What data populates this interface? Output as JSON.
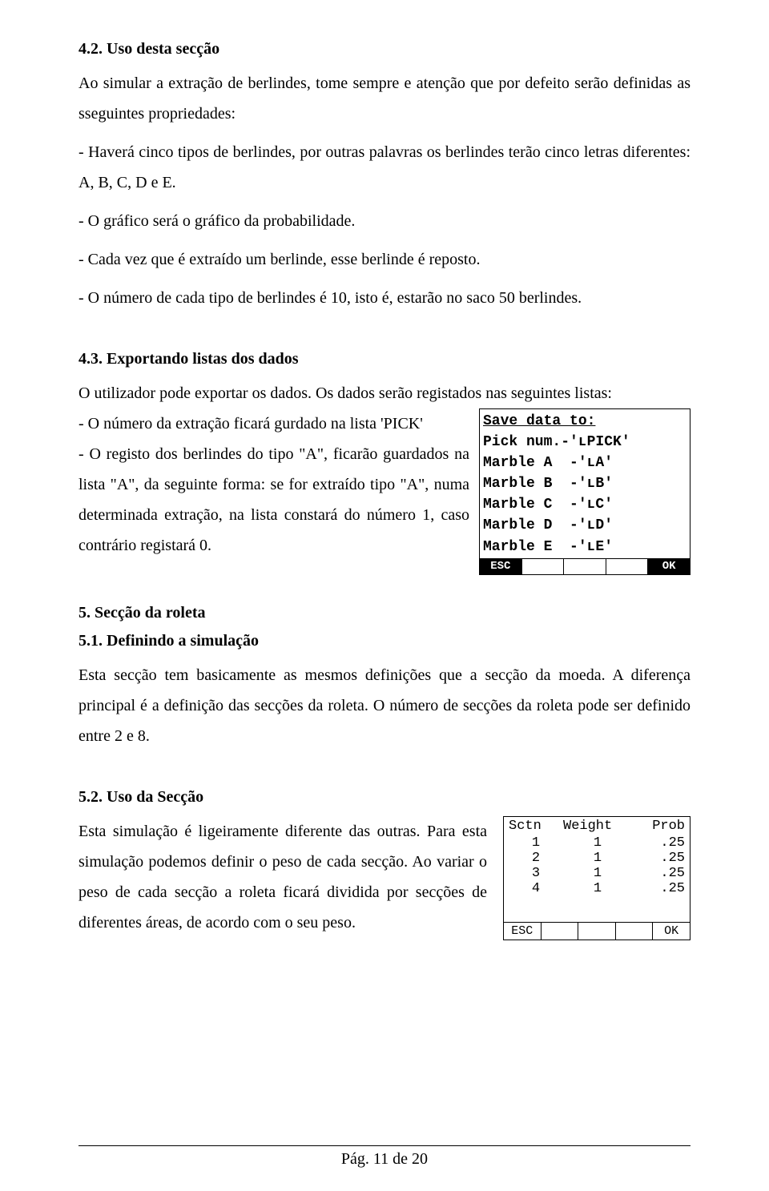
{
  "sec42": {
    "heading": "4.2. Uso desta secção",
    "p1": "Ao simular a extração de berlindes, tome sempre e atenção que por defeito serão definidas as sseguintes propriedades:",
    "b1": "- Haverá cinco tipos de berlindes, por outras palavras os berlindes terão cinco letras diferentes: A, B, C, D e E.",
    "b2": "- O gráfico será o gráfico da probabilidade.",
    "b3": "- Cada vez que é extraído um berlinde, esse berlinde é reposto.",
    "b4": "- O número de cada tipo de berlindes é 10, isto é, estarão no saco 50 berlindes."
  },
  "sec43": {
    "heading": "4.3. Exportando listas dos dados",
    "p1": "O utilizador pode exportar os dados. Os dados serão registados nas seguintes listas:",
    "wrap": "- O número da extração ficará gurdado na lista 'PICK'\n- O registo dos berlindes do tipo \"A\", ficarão guardados na lista \"A\", da seguinte forma: se for extraído tipo \"A\", numa determinada extração, na lista constará do número 1, caso contrário registará 0.",
    "calc": {
      "title": "Save data to:",
      "lines": [
        "Pick num.-'ʟPICK'",
        "Marble A  -'ʟA'",
        "Marble B  -'ʟB'",
        "Marble C  -'ʟC'",
        "Marble D  -'ʟD'",
        "Marble E  -'ʟE'"
      ],
      "foot_esc": "ESC",
      "foot_ok": "OK"
    }
  },
  "sec5": {
    "heading": "5. Secção da roleta"
  },
  "sec51": {
    "heading": "5.1. Definindo a simulação",
    "p1": "Esta secção tem basicamente as mesmos definições que a secção da moeda.  A diferença principal é a definição das secções da roleta.  O número de secções da roleta pode ser definido entre 2 e 8."
  },
  "sec52": {
    "heading": "5.2. Uso da Secção",
    "p1": "Esta simulação é ligeiramente diferente das outras.  Para esta simulação podemos definir o peso de cada secção. Ao variar o peso de cada secção a roleta ficará dividida por secções de diferentes áreas, de acordo com o seu peso.",
    "table": {
      "head": {
        "c1": "Sctn",
        "c2": "Weight",
        "c3": "Prob"
      },
      "rows": [
        {
          "c1": "1",
          "c2": "1",
          "c3": ".25"
        },
        {
          "c1": "2",
          "c2": "1",
          "c3": ".25"
        },
        {
          "c1": "3",
          "c2": "1",
          "c3": ".25"
        },
        {
          "c1": "4",
          "c2": "1",
          "c3": ".25"
        }
      ],
      "foot_esc": "ESC",
      "foot_ok": "OK"
    }
  },
  "footer": "Pág. 11 de 20"
}
